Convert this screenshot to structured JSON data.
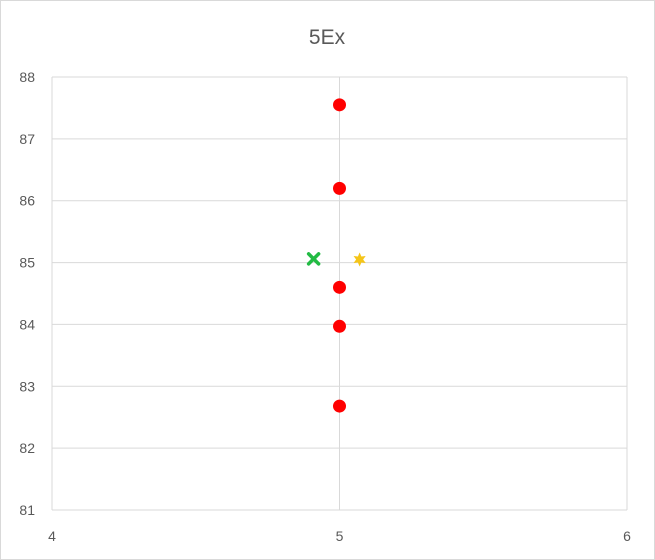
{
  "chart_data": {
    "type": "scatter",
    "title": "5Ex",
    "xlabel": "",
    "ylabel": "",
    "xlim": [
      4,
      6
    ],
    "ylim": [
      81,
      88
    ],
    "x_ticks": [
      "4",
      "5",
      "6"
    ],
    "y_ticks": [
      "81",
      "82",
      "83",
      "84",
      "85",
      "86",
      "87",
      "88"
    ],
    "grid": true,
    "legend": "none",
    "series": [
      {
        "name": "data points",
        "marker": "circle",
        "color": "#ff0000",
        "points": [
          {
            "x": 5,
            "y": 87.55
          },
          {
            "x": 5,
            "y": 86.2
          },
          {
            "x": 5,
            "y": 84.6
          },
          {
            "x": 5,
            "y": 83.97
          },
          {
            "x": 5,
            "y": 82.68
          }
        ]
      },
      {
        "name": "cross marker",
        "marker": "x",
        "color": "#22bb44",
        "points": [
          {
            "x": 4.91,
            "y": 85.06
          }
        ]
      },
      {
        "name": "star marker",
        "marker": "star",
        "color": "#f5c518",
        "points": [
          {
            "x": 5.07,
            "y": 85.05
          }
        ]
      }
    ]
  }
}
